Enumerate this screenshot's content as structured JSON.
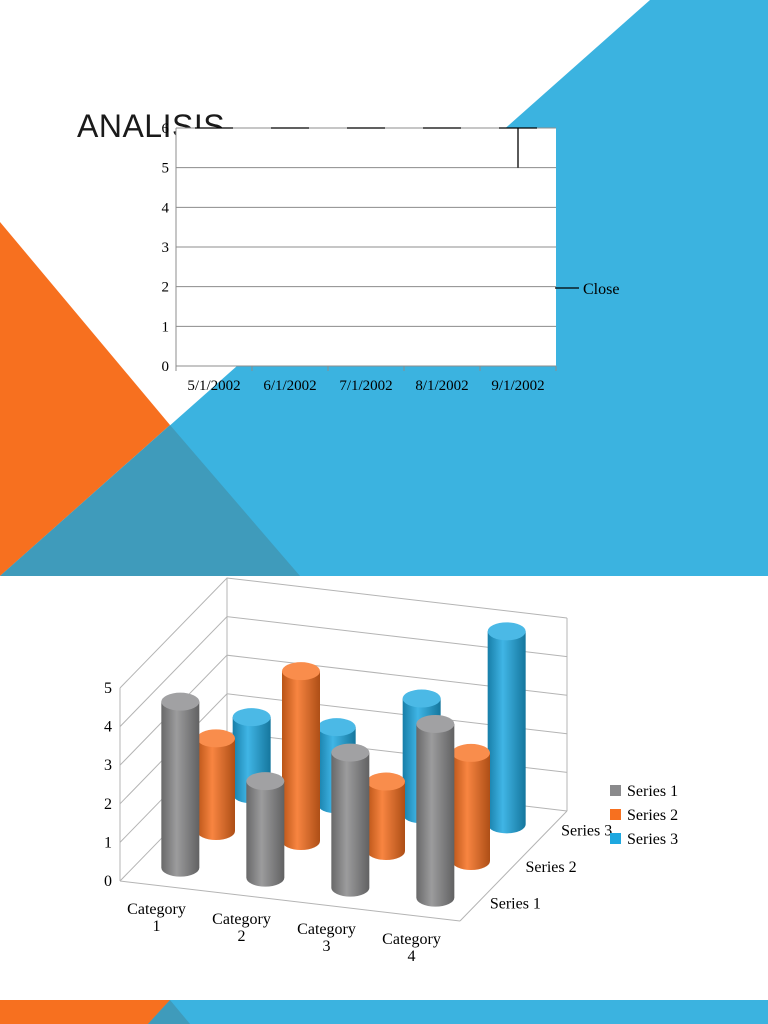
{
  "slide1": {
    "title": "ANALISIS"
  },
  "colors": {
    "blue": "#3bb3e0",
    "orange": "#f7701f",
    "teal": "#3f9bbb",
    "gray": "#8a8a8c"
  },
  "chart_data": [
    {
      "type": "line",
      "title": "",
      "xlabel": "",
      "ylabel": "",
      "categories": [
        "5/1/2002",
        "6/1/2002",
        "7/1/2002",
        "8/1/2002",
        "9/1/2002"
      ],
      "yticks": [
        "0",
        "1",
        "2",
        "3",
        "4",
        "5",
        "6"
      ],
      "ylim": [
        0,
        6
      ],
      "grid": true,
      "legend_position": "right",
      "series": [
        {
          "name": "Close",
          "values": [
            6,
            6,
            6,
            6,
            6
          ]
        }
      ],
      "error_bar": {
        "category_index": 4,
        "high": 6,
        "low": 5
      }
    },
    {
      "type": "bar",
      "subtype": "3d-cylinder",
      "title": "",
      "categories": [
        "Category 1",
        "Category 2",
        "Category 3",
        "Category 4"
      ],
      "yticks": [
        "0",
        "1",
        "2",
        "3",
        "4",
        "5"
      ],
      "ylim": [
        0,
        5
      ],
      "grid": true,
      "legend_position": "right",
      "depth_labels": [
        "Series 3",
        "Series 2",
        "Series 1"
      ],
      "series": [
        {
          "name": "Series 1",
          "values": [
            4.3,
            2.5,
            3.5,
            4.5
          ],
          "color": "#8a8a8c"
        },
        {
          "name": "Series 2",
          "values": [
            2.4,
            4.4,
            1.8,
            2.8
          ],
          "color": "#f7701f"
        },
        {
          "name": "Series 3",
          "values": [
            2,
            2,
            3,
            5
          ],
          "color": "#1ea8e0"
        }
      ]
    }
  ]
}
